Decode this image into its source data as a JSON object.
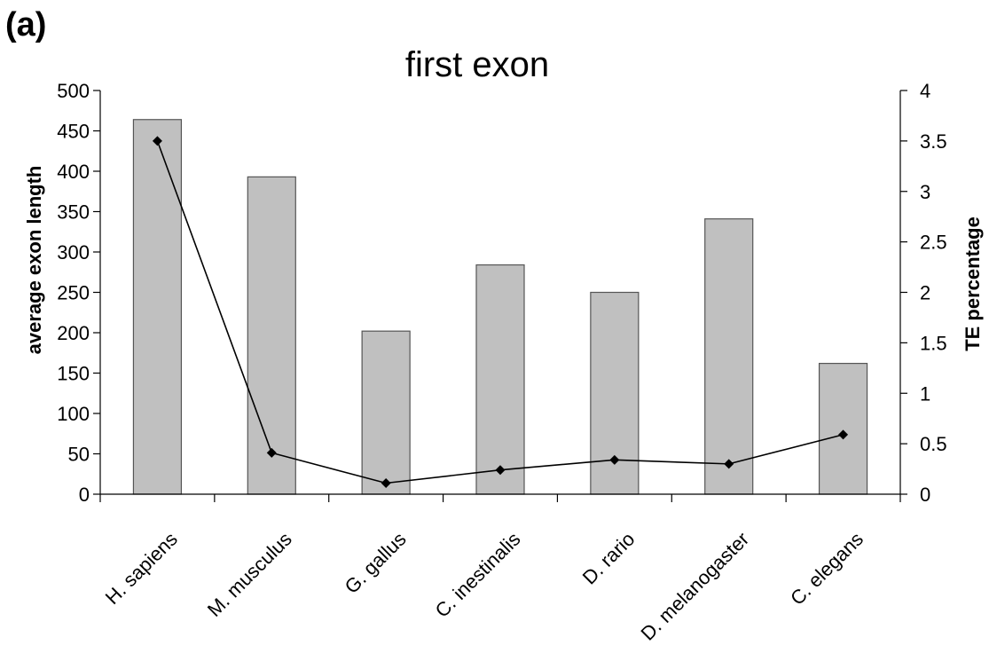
{
  "panel_label": "(a)",
  "chart_data": {
    "type": "bar+line",
    "title": "first exon",
    "categories": [
      "H. sapiens",
      "M. musculus",
      "G. gallus",
      "C. inestinalis",
      "D. rario",
      "D. melanogaster",
      "C. elegans"
    ],
    "bar_series": {
      "axis": "left",
      "values": [
        464,
        393,
        202,
        284,
        250,
        341,
        162
      ],
      "color": "#c0c0c0"
    },
    "line_series": {
      "axis": "right",
      "values": [
        3.5,
        0.41,
        0.11,
        0.24,
        0.34,
        0.3,
        0.59
      ],
      "color": "#000000",
      "marker": "diamond"
    },
    "ylabel_left": "average exon length",
    "ylabel_right": "TE percentage",
    "ylim_left": [
      0,
      500
    ],
    "ylim_right": [
      0,
      4
    ],
    "left_ticks": [
      "0",
      "50",
      "100",
      "150",
      "200",
      "250",
      "300",
      "350",
      "400",
      "450",
      "500"
    ],
    "right_ticks": [
      "0",
      "0.5",
      "1",
      "1.5",
      "2",
      "2.5",
      "3",
      "3.5",
      "4"
    ],
    "grid": false,
    "legend": "none"
  }
}
